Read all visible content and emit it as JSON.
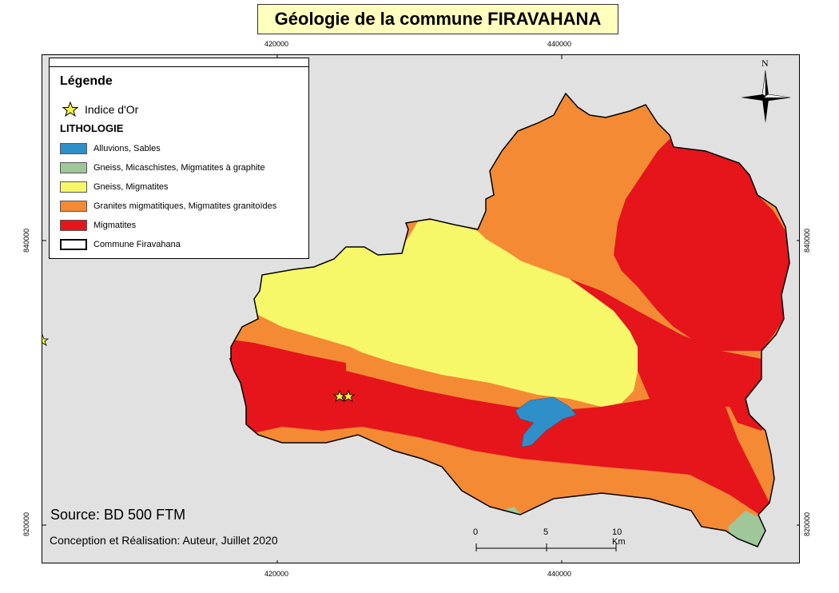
{
  "title": "Géologie de la commune FIRAVAHANA",
  "ticks": {
    "top": [
      "420000",
      "440000"
    ],
    "bottom": [
      "420000",
      "440000"
    ],
    "left": [
      "840000",
      "820000"
    ],
    "right": [
      "840000",
      "820000"
    ]
  },
  "legend": {
    "title": "Légende",
    "gold_label": "Indice d'Or",
    "lithology_header": "LITHOLOGIE",
    "items": [
      {
        "label": "Alluvions, Sables",
        "color": "#2e8fc9"
      },
      {
        "label": "Gneiss, Micaschistes, Migmatites à graphite",
        "color": "#9fc79a"
      },
      {
        "label": "Gneiss, Migmatites",
        "color": "#f7f76a"
      },
      {
        "label": "Granites migmatitiques, Migmatites granitoïdes",
        "color": "#f58a34"
      },
      {
        "label": "Migmatites",
        "color": "#e5151b"
      },
      {
        "label": "Commune Firavahana",
        "color": "#ffffff"
      }
    ]
  },
  "source": "Source: BD 500 FTM",
  "credit": "Conception et Réalisation: Auteur, Juillet 2020",
  "scale": {
    "labels": [
      "0",
      "5",
      "10 Km"
    ]
  },
  "north_label": "N",
  "colors": {
    "background": "#e1e1e1",
    "title_bg": "#ffffbe",
    "gold_star": "#f5f542"
  }
}
